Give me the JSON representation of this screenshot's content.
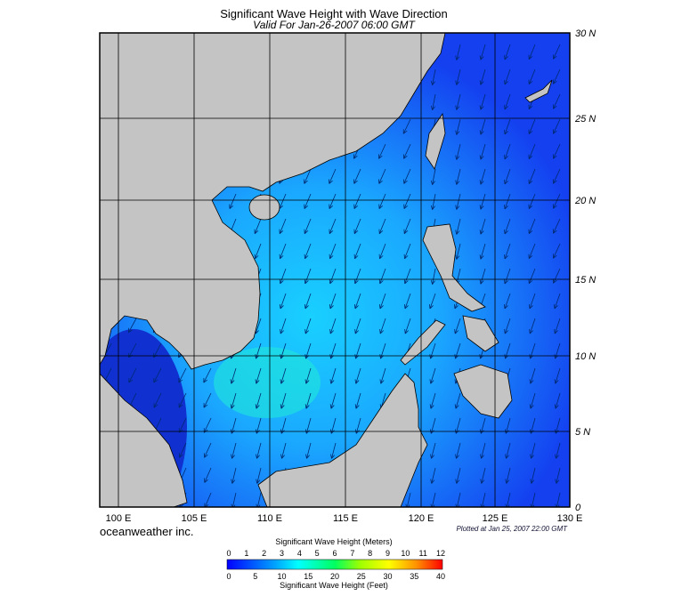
{
  "header": {
    "title": "Significant Wave Height with Wave Direction",
    "subtitle": "Valid For Jan-26-2007 06:00 GMT"
  },
  "map": {
    "lat_labels": [
      "30 N",
      "25 N",
      "20 N",
      "15 N",
      "10 N",
      "5 N",
      "0"
    ],
    "lon_labels": [
      "100 E",
      "105 E",
      "110 E",
      "115 E",
      "120 E",
      "125 E",
      "130 E"
    ],
    "brand": "oceanweather inc.",
    "plotted": "Plotted at Jan 25, 2007 22:00 GMT"
  },
  "colorbar": {
    "meters_title": "Significant Wave Height (Meters)",
    "meters_labels": [
      "0",
      "1",
      "2",
      "3",
      "4",
      "5",
      "6",
      "7",
      "8",
      "9",
      "10",
      "11",
      "12"
    ],
    "feet_labels": [
      "0",
      "5",
      "10",
      "15",
      "20",
      "25",
      "30",
      "35",
      "40"
    ],
    "feet_title": "Significant Wave Height (Feet)"
  }
}
